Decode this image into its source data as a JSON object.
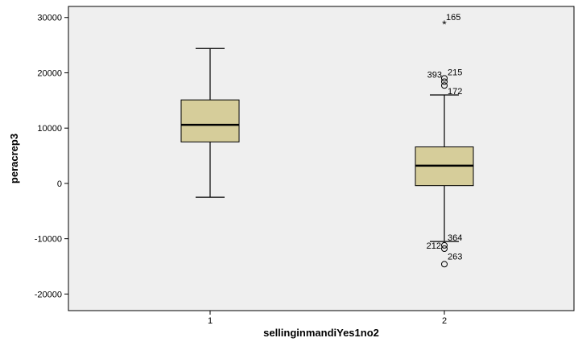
{
  "chart_data": {
    "type": "boxplot",
    "xlabel": "sellinginmandiYes1no2",
    "ylabel": "peracrep3",
    "categories": [
      "1",
      "2"
    ],
    "ylim": [
      -23000,
      32000
    ],
    "yticks": [
      30000,
      20000,
      10000,
      0,
      -10000,
      -20000
    ],
    "ytick_labels": [
      "30000",
      "20000",
      "10000",
      "0",
      "-10000",
      "-20000"
    ],
    "grid": false,
    "box_color": "#d6cd9a",
    "plot_background": "#efefef",
    "boxes": [
      {
        "category": "1",
        "whisker_low": -2500,
        "q1": 7500,
        "median": 10600,
        "q3": 15100,
        "whisker_high": 24400,
        "outliers": []
      },
      {
        "category": "2",
        "whisker_low": -10500,
        "q1": -400,
        "median": 3200,
        "q3": 6600,
        "whisker_high": 16000,
        "outliers": [
          {
            "value": 28800,
            "marker": "star",
            "label": "165"
          },
          {
            "value": 19000,
            "marker": "circle",
            "label": "393"
          },
          {
            "value": 18400,
            "marker": "circle",
            "label": "215"
          },
          {
            "value": 17700,
            "marker": "circle",
            "label": ""
          },
          {
            "value": 16000,
            "marker": "none",
            "label": "172"
          },
          {
            "value": -10500,
            "marker": "none",
            "label": "364"
          },
          {
            "value": -11200,
            "marker": "circle",
            "label": "212"
          },
          {
            "value": -11800,
            "marker": "circle",
            "label": ""
          },
          {
            "value": -14600,
            "marker": "circle",
            "label": "263"
          }
        ]
      }
    ]
  }
}
